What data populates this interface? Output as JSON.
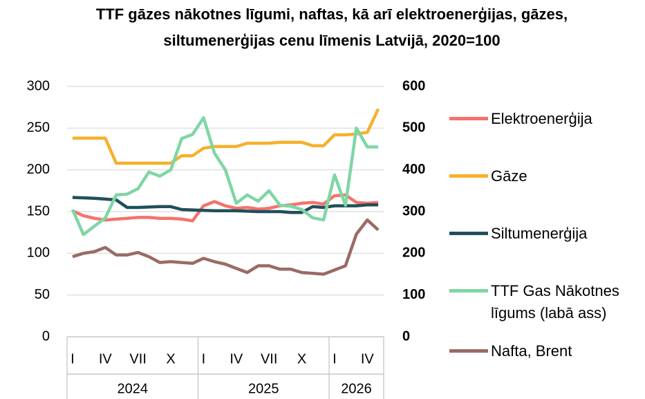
{
  "chart_data": {
    "type": "line",
    "title": "TTF gāzes nākotnes līgumi, naftas, kā arī elektroenerģijas, gāzes, siltumenerģijas cenu līmenis Latvijā, 2020=100",
    "categories": [
      "I",
      null,
      null,
      "IV",
      null,
      null,
      "VII",
      null,
      null,
      "X",
      null,
      null,
      "I",
      null,
      null,
      "IV",
      null,
      null,
      "VII",
      null,
      null,
      "X",
      null,
      null,
      "I",
      null,
      null,
      "IV",
      null
    ],
    "year_labels": [
      "2024",
      "2025",
      "2026"
    ],
    "ylim": [
      0,
      300
    ],
    "yticks": [
      0,
      50,
      100,
      150,
      200,
      250,
      300
    ],
    "y2lim": [
      0,
      600
    ],
    "y2ticks": [
      0,
      100,
      200,
      300,
      400,
      500,
      600
    ],
    "grid": true,
    "legend": "right",
    "series": [
      {
        "name": "Elektroenerģija",
        "color": "#f4736b",
        "values": [
          151,
          145,
          142,
          140,
          141,
          142,
          143,
          143,
          142,
          142,
          141,
          139,
          157,
          162,
          157,
          154,
          155,
          153,
          154,
          157,
          158,
          160,
          161,
          159,
          169,
          170,
          161,
          160,
          161
        ]
      },
      {
        "name": "Gāze",
        "color": "#f5b12c",
        "values": [
          238,
          238,
          238,
          238,
          208,
          208,
          208,
          208,
          208,
          208,
          217,
          217,
          226,
          228,
          228,
          228,
          232,
          232,
          232,
          233,
          233,
          233,
          229,
          229,
          242,
          242,
          243,
          245,
          273
        ]
      },
      {
        "name": "Siltumenerģija",
        "color": "#214f59",
        "values": [
          167,
          166.5,
          166,
          165,
          164,
          155,
          155,
          155.5,
          156,
          156,
          152.5,
          152,
          151.5,
          151,
          151,
          151,
          150.5,
          150,
          150,
          150,
          149,
          149,
          156,
          155,
          157,
          157,
          157,
          158,
          158
        ]
      },
      {
        "name": "TTF Gas Nākotnes līgums (labā ass)",
        "color": "#7fd6a4",
        "axis": "y2",
        "values": [
          305,
          245,
          265,
          285,
          340,
          342,
          355,
          395,
          385,
          400,
          475,
          485,
          525,
          440,
          400,
          320,
          340,
          325,
          350,
          315,
          313,
          305,
          285,
          280,
          388,
          315,
          500,
          455,
          455
        ]
      },
      {
        "name": "Nafta, Brent",
        "color": "#9a6b64",
        "values": [
          96,
          100,
          102,
          107,
          98,
          98,
          101,
          96,
          89,
          90,
          89,
          88,
          94,
          90,
          87,
          82,
          77,
          85,
          85,
          81,
          81,
          77,
          76,
          75,
          80,
          85,
          123,
          140,
          128
        ]
      }
    ]
  }
}
